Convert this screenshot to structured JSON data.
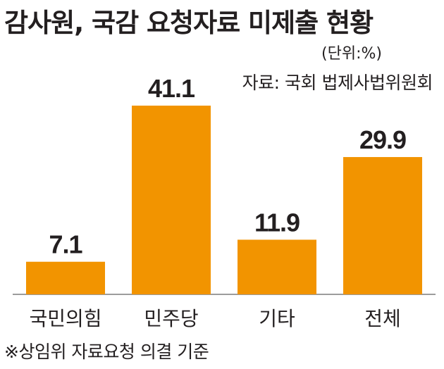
{
  "chart_data": {
    "type": "bar",
    "title": "감사원, 국감 요청자료 미제출 현황",
    "unit": "(단위:%)",
    "source": "자료: 국회 법제사법위원회",
    "footnote": "※상임위 자료요청 의결 기준",
    "categories": [
      "국민의힘",
      "민주당",
      "기타",
      "전체"
    ],
    "values": [
      7.1,
      41.1,
      11.9,
      29.9
    ],
    "value_labels": [
      "7.1",
      "41.1",
      "11.9",
      "29.9"
    ],
    "bar_color": "#f29400",
    "baseline_color": "#9c9c9c",
    "ylim": [
      0,
      41.1
    ],
    "grid": false,
    "legend": "none"
  }
}
